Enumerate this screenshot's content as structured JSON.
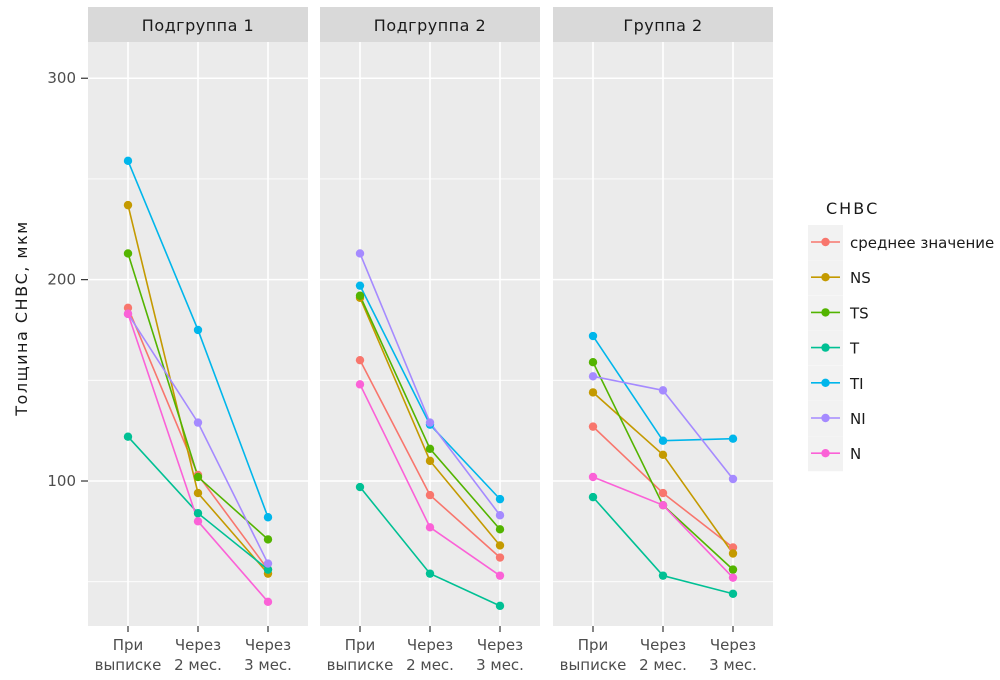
{
  "chart_data": {
    "type": "line",
    "ylabel": "Толщина СНВС, мкм",
    "ylim": [
      28,
      318
    ],
    "yticks": [
      100,
      200,
      300
    ],
    "categories": [
      [
        "При",
        "выписке"
      ],
      [
        "Через",
        "2 мес."
      ],
      [
        "Через",
        "3 мес."
      ]
    ],
    "legend_title": "СНВС",
    "legend_position": "right",
    "series_meta": [
      {
        "name": "среднее значение",
        "color": "#F8766D"
      },
      {
        "name": "NS",
        "color": "#C49A00"
      },
      {
        "name": "TS",
        "color": "#53B400"
      },
      {
        "name": "T",
        "color": "#00C094"
      },
      {
        "name": "TI",
        "color": "#00B6EB"
      },
      {
        "name": "NI",
        "color": "#A58AFF"
      },
      {
        "name": "N",
        "color": "#FB61D7"
      }
    ],
    "panels": [
      {
        "title": "Подгруппа 1",
        "series": {
          "среднее значение": [
            186,
            103,
            56
          ],
          "NS": [
            237,
            94,
            54
          ],
          "TS": [
            213,
            102,
            71
          ],
          "T": [
            122,
            84,
            56
          ],
          "TI": [
            259,
            175,
            82
          ],
          "NI": [
            183,
            129,
            59
          ],
          "N": [
            183,
            80,
            40
          ]
        }
      },
      {
        "title": "Подгруппа 2",
        "series": {
          "среднее значение": [
            160,
            93,
            62
          ],
          "NS": [
            191,
            110,
            68
          ],
          "TS": [
            192,
            116,
            76
          ],
          "T": [
            97,
            54,
            38
          ],
          "TI": [
            197,
            128,
            91
          ],
          "NI": [
            213,
            129,
            83
          ],
          "N": [
            148,
            77,
            53
          ]
        }
      },
      {
        "title": "Группа 2",
        "series": {
          "среднее значение": [
            127,
            94,
            67
          ],
          "NS": [
            144,
            113,
            64
          ],
          "TS": [
            159,
            88,
            56
          ],
          "T": [
            92,
            53,
            44
          ],
          "TI": [
            172,
            120,
            121
          ],
          "NI": [
            152,
            145,
            101
          ],
          "N": [
            102,
            88,
            52
          ]
        }
      }
    ]
  }
}
